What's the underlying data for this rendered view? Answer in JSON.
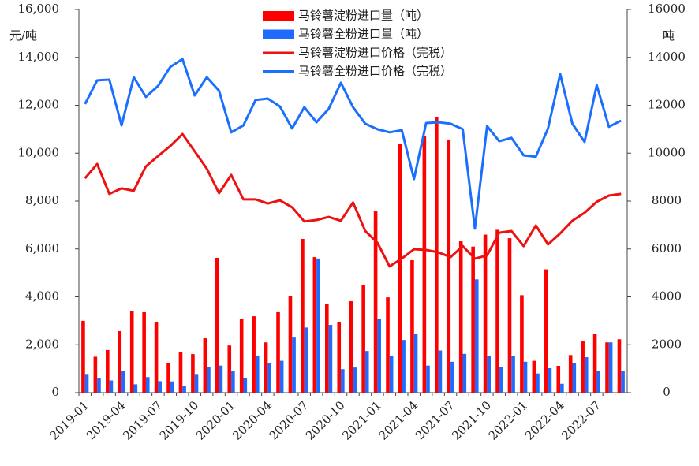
{
  "chart_data": {
    "type": "bar",
    "y_label": "元/吨",
    "y2_label": "吨",
    "categories": [
      "2019-01",
      null,
      null,
      "2019-04",
      null,
      null,
      "2019-07",
      null,
      null,
      "2019-10",
      null,
      null,
      "2020-01",
      null,
      null,
      "2020-04",
      null,
      null,
      "2020-07",
      null,
      null,
      "2020-10",
      null,
      null,
      "2021-01",
      null,
      null,
      "2021-04",
      null,
      null,
      "2021-07",
      null,
      null,
      "2021-10",
      null,
      null,
      "2022-01",
      null,
      null,
      "2022-04",
      null,
      null,
      "2022-07",
      null,
      null
    ],
    "series": [
      {
        "name": "马铃薯淀粉进口量（吨）",
        "type": "bar",
        "color": "#ff0000",
        "values": [
          3000,
          1500,
          1780,
          2570,
          3390,
          3360,
          2960,
          1250,
          1710,
          1610,
          2270,
          5630,
          1970,
          3090,
          3190,
          2100,
          3360,
          4050,
          6420,
          5660,
          3720,
          2930,
          3820,
          4480,
          7570,
          3980,
          10400,
          5530,
          10730,
          11520,
          10570,
          6320,
          6100,
          6600,
          6800,
          6450,
          4070,
          1330,
          5150,
          1120,
          1570,
          2150,
          2440,
          2100,
          2230
        ]
      },
      {
        "name": "马铃薯全粉进口量（吨）",
        "type": "bar",
        "color": "#1f6bff",
        "values": [
          780,
          590,
          510,
          890,
          350,
          650,
          480,
          470,
          280,
          780,
          1080,
          1130,
          920,
          620,
          1550,
          1250,
          1330,
          2300,
          2720,
          5600,
          2830,
          980,
          1050,
          1740,
          3090,
          1550,
          2200,
          2470,
          1130,
          1760,
          1290,
          1620,
          4730,
          1550,
          1060,
          1520,
          1290,
          800,
          1020,
          370,
          1250,
          1480,
          890,
          2100,
          890
        ]
      },
      {
        "name": "马铃薯淀粉进口价格（完税）",
        "type": "line",
        "axis": "y2",
        "color": "#ee1111",
        "values": [
          8950,
          9550,
          8300,
          8530,
          8430,
          9450,
          9880,
          10300,
          10800,
          10080,
          9350,
          8330,
          9090,
          8070,
          8070,
          7900,
          8030,
          7740,
          7150,
          7210,
          7340,
          7180,
          7940,
          6750,
          6260,
          5270,
          5600,
          5990,
          5960,
          5860,
          5660,
          6120,
          5600,
          5730,
          6680,
          6750,
          6120,
          6980,
          6190,
          6650,
          7180,
          7510,
          7970,
          8230,
          8300
        ]
      },
      {
        "name": "马铃薯全粉进口价格（完税）",
        "type": "line",
        "axis": "y2",
        "color": "#1a6fff",
        "values": [
          12050,
          13040,
          13070,
          11160,
          13170,
          12350,
          12810,
          13600,
          13930,
          12410,
          13170,
          12610,
          10870,
          11160,
          12220,
          12280,
          11950,
          11030,
          11920,
          11290,
          11850,
          12940,
          11920,
          11230,
          11000,
          10870,
          10960,
          8920,
          11260,
          11290,
          11230,
          11000,
          6850,
          11130,
          10500,
          10640,
          9910,
          9850,
          11030,
          13300,
          11230,
          10470,
          12840,
          11100,
          11360
        ]
      }
    ],
    "ylim": [
      0,
      16000
    ],
    "yticks": [
      0,
      {
        "value": 2000,
        "label": "2,000"
      },
      {
        "value": 4000,
        "label": "4,000"
      },
      {
        "value": 6000,
        "label": "6,000"
      },
      {
        "value": 8000,
        "label": "8,000"
      },
      {
        "value": 10000,
        "label": "10,000"
      },
      {
        "value": 12000,
        "label": "12,000"
      },
      {
        "value": 14000,
        "label": "14,000"
      },
      {
        "value": 16000,
        "label": "16,000"
      }
    ],
    "y2lim": [
      0,
      16000
    ],
    "y2ticks": [
      0,
      2000,
      4000,
      6000,
      8000,
      10000,
      12000,
      14000,
      16000
    ],
    "legend": "top"
  }
}
